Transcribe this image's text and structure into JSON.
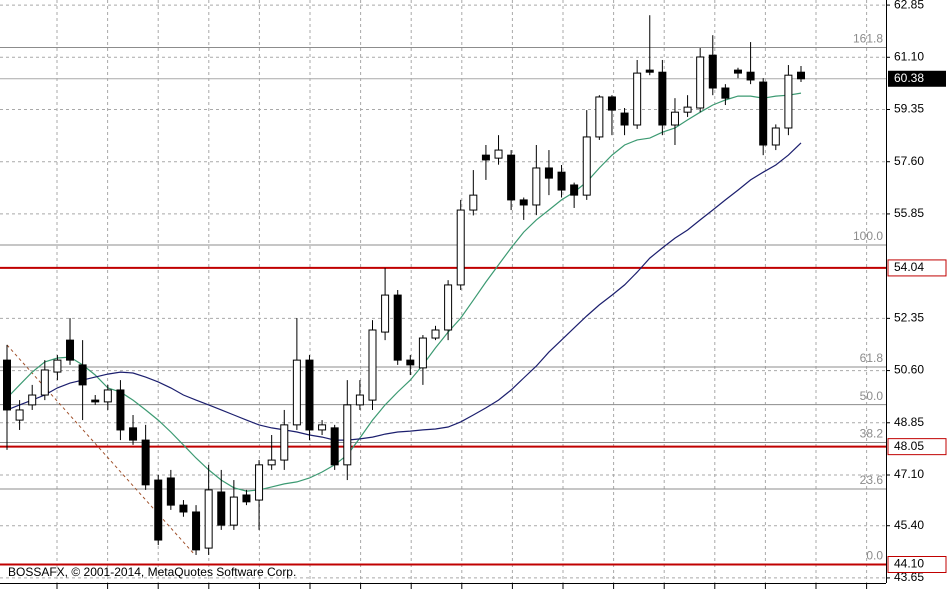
{
  "chart_data": {
    "type": "candlestick",
    "ylim": [
      43.48,
      63.02
    ],
    "yticks": [
      62.85,
      {
        "value": 61.1,
        "label": "61.10"
      },
      59.35,
      {
        "value": 57.6,
        "label": "57.60"
      },
      55.85,
      52.35,
      {
        "value": 50.6,
        "label": "50.60"
      },
      48.85,
      {
        "value": 47.1,
        "label": "47.10"
      },
      {
        "value": 45.4,
        "label": "45.40"
      },
      43.65
    ],
    "grid": true,
    "up_color": "#ffffff",
    "down_color": "#000000",
    "open": [
      50.95,
      48.94,
      49.45,
      49.78,
      50.55,
      51.62,
      50.79,
      49.61,
      49.55,
      49.95,
      48.68,
      48.27,
      46.93,
      47.0,
      46.09,
      45.86,
      44.65,
      46.53,
      45.42,
      46.43,
      46.26,
      47.44,
      47.6,
      48.78,
      50.95,
      48.61,
      48.68,
      47.44,
      49.45,
      49.61,
      51.89,
      53.13,
      50.95,
      50.69,
      51.69,
      51.96,
      53.47,
      55.98,
      57.82,
      57.72,
      57.82,
      56.32,
      56.15,
      57.39,
      57.25,
      56.82,
      56.48,
      58.43,
      59.77,
      59.23,
      58.83,
      60.67,
      60.6,
      58.83,
      59.26,
      59.4,
      61.17,
      60.07,
      60.67,
      60.6,
      60.27,
      58.16,
      58.73,
      60.6
    ],
    "high": [
      51.46,
      49.61,
      50.12,
      50.95,
      51.12,
      52.36,
      51.62,
      49.78,
      50.12,
      50.28,
      49.11,
      48.78,
      47.1,
      47.27,
      46.26,
      46.09,
      47.44,
      47.27,
      46.93,
      46.6,
      47.6,
      48.44,
      49.28,
      52.36,
      51.12,
      48.94,
      48.78,
      50.28,
      50.28,
      52.29,
      54.04,
      53.3,
      51.12,
      51.79,
      52.1,
      53.63,
      56.32,
      57.32,
      58.16,
      58.49,
      57.99,
      56.4,
      58.16,
      57.99,
      57.49,
      56.9,
      59.33,
      59.83,
      59.83,
      59.4,
      61.01,
      62.51,
      61.01,
      59.73,
      59.83,
      61.41,
      61.84,
      60.2,
      60.75,
      61.61,
      60.4,
      58.85,
      60.84,
      60.81
    ],
    "low": [
      47.94,
      48.61,
      49.28,
      49.61,
      50.28,
      50.79,
      48.94,
      49.45,
      49.28,
      48.27,
      48.11,
      46.6,
      44.75,
      45.93,
      45.7,
      44.42,
      44.42,
      45.26,
      45.26,
      46.09,
      45.26,
      47.27,
      47.27,
      48.61,
      48.27,
      48.44,
      47.27,
      46.93,
      49.28,
      49.28,
      51.62,
      50.79,
      50.45,
      50.12,
      51.62,
      51.62,
      53.3,
      55.8,
      56.99,
      57.5,
      55.98,
      55.65,
      55.81,
      56.48,
      56.4,
      56.05,
      56.32,
      58.33,
      58.49,
      58.49,
      58.7,
      60.5,
      58.49,
      58.16,
      59.1,
      59.26,
      59.83,
      59.5,
      60.4,
      60.2,
      57.82,
      57.99,
      58.49,
      60.27
    ],
    "close": [
      49.28,
      49.28,
      49.78,
      50.62,
      50.95,
      50.95,
      50.12,
      49.55,
      49.95,
      48.61,
      48.27,
      46.77,
      44.92,
      46.09,
      45.86,
      44.59,
      46.6,
      45.42,
      46.36,
      46.2,
      47.44,
      47.6,
      48.78,
      50.95,
      48.61,
      48.78,
      47.44,
      49.45,
      49.78,
      51.96,
      53.13,
      50.95,
      50.79,
      51.69,
      51.96,
      53.47,
      55.98,
      56.48,
      57.66,
      57.99,
      56.32,
      56.15,
      57.39,
      57.05,
      56.65,
      56.48,
      58.43,
      59.77,
      59.33,
      58.83,
      60.57,
      60.6,
      58.83,
      59.26,
      59.43,
      61.11,
      60.07,
      59.73,
      60.57,
      60.34,
      58.16,
      58.73,
      60.5,
      60.38
    ],
    "moving_averages": [
      {
        "color": "#3c9a72",
        "values": [
          49.68,
          50.12,
          50.55,
          50.89,
          51.02,
          51.05,
          50.79,
          50.45,
          50.02,
          49.88,
          49.61,
          49.28,
          48.94,
          48.54,
          48.11,
          47.67,
          47.27,
          46.93,
          46.67,
          46.56,
          46.6,
          46.7,
          46.8,
          46.87,
          47.0,
          47.2,
          47.44,
          47.77,
          48.34,
          48.94,
          49.45,
          49.88,
          50.28,
          50.79,
          51.36,
          51.89,
          52.36,
          52.96,
          53.57,
          54.14,
          54.71,
          55.24,
          55.65,
          55.98,
          56.32,
          56.58,
          56.92,
          57.39,
          57.82,
          58.16,
          58.33,
          58.39,
          58.59,
          58.73,
          59.0,
          59.26,
          59.5,
          59.67,
          59.8,
          59.8,
          59.73,
          59.8,
          59.83,
          59.9
        ]
      },
      {
        "color": "#1c1f6e",
        "values": [
          49.28,
          49.45,
          49.61,
          49.78,
          50.02,
          50.18,
          50.28,
          50.38,
          50.48,
          50.55,
          50.52,
          50.38,
          50.22,
          50.02,
          49.78,
          49.61,
          49.45,
          49.28,
          49.11,
          48.94,
          48.78,
          48.68,
          48.61,
          48.54,
          48.44,
          48.37,
          48.27,
          48.27,
          48.31,
          48.37,
          48.47,
          48.54,
          48.57,
          48.61,
          48.64,
          48.71,
          48.88,
          49.11,
          49.35,
          49.61,
          49.95,
          50.35,
          50.75,
          51.22,
          51.62,
          52.03,
          52.43,
          52.8,
          53.13,
          53.47,
          53.9,
          54.37,
          54.71,
          55.04,
          55.31,
          55.65,
          55.98,
          56.32,
          56.65,
          56.99,
          57.25,
          57.49,
          57.82,
          58.23
        ]
      }
    ],
    "levels": [
      {
        "value": 54.04,
        "label": "54.04"
      },
      {
        "value": 48.05,
        "label": "48.05"
      },
      {
        "value": 44.1,
        "label": "44.10"
      }
    ],
    "level_color": "#c00000",
    "current_price": 60.38,
    "fib_levels": [
      {
        "label": "161.8",
        "value": 61.43
      },
      {
        "label": "100.0",
        "value": 54.81
      },
      {
        "label": "61.8",
        "value": 50.72
      },
      {
        "label": "50.0",
        "value": 49.46
      },
      {
        "label": "38.2",
        "value": 48.19
      },
      {
        "label": "23.6",
        "value": 46.63
      },
      {
        "label": "0.0",
        "value": 44.1
      }
    ],
    "footer": "BOSSAFX, © 2001-2014, MetaQuotes Software Corp."
  }
}
